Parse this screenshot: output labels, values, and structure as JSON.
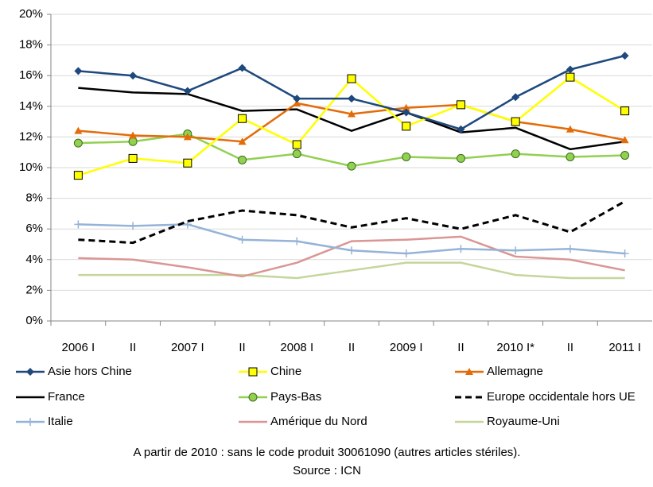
{
  "chart_data": {
    "type": "line",
    "categories": [
      "2006  I",
      "II",
      "2007  I",
      "II",
      "2008  I",
      "II",
      "2009  I",
      "II",
      "2010  I*",
      "II",
      "2011  I"
    ],
    "ylim": [
      0,
      20
    ],
    "yticks": [
      {
        "value": 0,
        "label": "0%"
      },
      {
        "value": 2,
        "label": "2%"
      },
      {
        "value": 4,
        "label": "4%"
      },
      {
        "value": 6,
        "label": "6%"
      },
      {
        "value": 8,
        "label": "8%"
      },
      {
        "value": 10,
        "label": "10%"
      },
      {
        "value": 12,
        "label": "12%"
      },
      {
        "value": 14,
        "label": "14%"
      },
      {
        "value": 16,
        "label": "16%"
      },
      {
        "value": 18,
        "label": "18%"
      },
      {
        "value": 20,
        "label": "20%"
      }
    ],
    "grid": true,
    "series": [
      {
        "name": "Asie hors Chine",
        "color": "#1f497d",
        "marker": "diamond",
        "values": [
          16.3,
          16.0,
          15.0,
          16.5,
          14.5,
          14.5,
          13.6,
          12.5,
          14.6,
          16.4,
          17.3
        ]
      },
      {
        "name": "Chine",
        "color": "#ffff00",
        "marker": "square",
        "values": [
          9.5,
          10.6,
          10.3,
          13.2,
          11.5,
          15.8,
          12.7,
          14.1,
          13.0,
          15.9,
          13.7
        ]
      },
      {
        "name": "Allemagne",
        "color": "#e36c09",
        "marker": "triangle",
        "values": [
          12.4,
          12.1,
          12.0,
          11.7,
          14.2,
          13.5,
          13.9,
          14.1,
          13.0,
          12.5,
          11.8
        ]
      },
      {
        "name": "France",
        "color": "#000000",
        "values": [
          15.2,
          14.9,
          14.8,
          13.7,
          13.8,
          12.4,
          13.6,
          12.3,
          12.6,
          11.2,
          11.7
        ]
      },
      {
        "name": "Pays-Bas",
        "color": "#92d050",
        "marker": "circle",
        "values": [
          11.6,
          11.7,
          12.2,
          10.5,
          10.9,
          10.1,
          10.7,
          10.6,
          10.9,
          10.7,
          10.8
        ]
      },
      {
        "name": "Europe occidentale hors UE",
        "color": "#000000",
        "dash": true,
        "values": [
          5.3,
          5.1,
          6.5,
          7.2,
          6.9,
          6.1,
          6.7,
          6.0,
          6.9,
          5.8,
          7.8
        ]
      },
      {
        "name": "Italie",
        "color": "#95b3d7",
        "marker": "plus",
        "values": [
          6.3,
          6.2,
          6.3,
          5.3,
          5.2,
          4.6,
          4.4,
          4.7,
          4.6,
          4.7,
          4.4
        ]
      },
      {
        "name": "Amérique du Nord",
        "color": "#d99694",
        "values": [
          4.1,
          4.0,
          3.5,
          2.9,
          3.8,
          5.2,
          5.3,
          5.5,
          4.2,
          4.0,
          3.3
        ]
      },
      {
        "name": "Royaume-Uni",
        "color": "#c3d69b",
        "values": [
          3.0,
          3.0,
          3.0,
          3.0,
          2.8,
          3.3,
          3.8,
          3.8,
          3.0,
          2.8,
          2.8
        ]
      }
    ],
    "notes": [
      "A partir de 2010 : sans le code produit 30061090 (autres articles stériles).",
      "Source : ICN"
    ]
  }
}
